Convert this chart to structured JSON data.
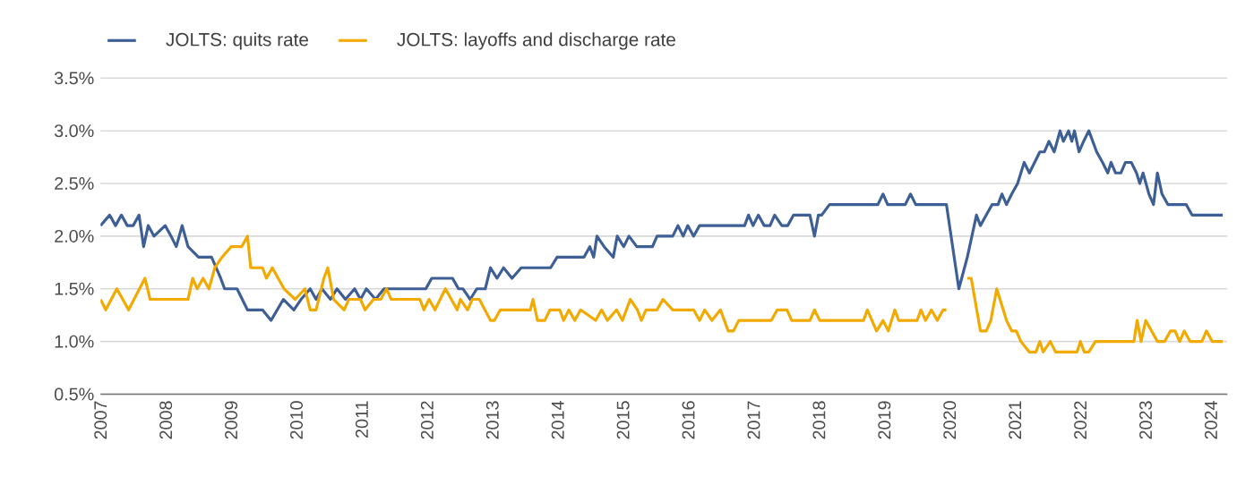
{
  "chart_data": {
    "type": "line",
    "legend": "top left",
    "grid": "y",
    "marker": "none",
    "line_style": "solid",
    "ylim": [
      0.5,
      3.5
    ],
    "yticks": [
      {
        "value": 0.5,
        "label": "0.5%"
      },
      {
        "value": 1.0,
        "label": "1.0%"
      },
      {
        "value": 1.5,
        "label": "1.5%"
      },
      {
        "value": 2.0,
        "label": "2.0%"
      },
      {
        "value": 2.5,
        "label": "2.5%"
      },
      {
        "value": 3.0,
        "label": "3.0%"
      },
      {
        "value": 3.5,
        "label": "3.5%"
      }
    ],
    "xlim": [
      2007,
      2024.25
    ],
    "xticks": [
      2007,
      2008,
      2009,
      2010,
      2011,
      2012,
      2013,
      2014,
      2015,
      2016,
      2017,
      2018,
      2019,
      2020,
      2021,
      2022,
      2023,
      2024
    ],
    "series": [
      {
        "name": "JOLTS: quits rate",
        "color": "#3d5f96",
        "x": [
          2007.0,
          2007.14,
          2007.23,
          2007.32,
          2007.41,
          2007.5,
          2007.59,
          2007.66,
          2007.73,
          2007.82,
          2007.99,
          2008.08,
          2008.16,
          2008.25,
          2008.34,
          2008.5,
          2008.7,
          2008.84,
          2008.9,
          2009.09,
          2009.25,
          2009.48,
          2009.61,
          2009.8,
          2009.96,
          2010.07,
          2010.21,
          2010.3,
          2010.39,
          2010.52,
          2010.62,
          2010.75,
          2010.89,
          2010.98,
          2011.07,
          2011.21,
          2011.34,
          2011.98,
          2012.07,
          2012.39,
          2012.48,
          2012.55,
          2012.66,
          2012.76,
          2012.89,
          2012.97,
          2013.07,
          2013.17,
          2013.3,
          2013.44,
          2013.89,
          2013.99,
          2014.4,
          2014.49,
          2014.55,
          2014.6,
          2014.71,
          2014.85,
          2014.91,
          2015.01,
          2015.09,
          2015.21,
          2015.45,
          2015.52,
          2015.76,
          2015.84,
          2015.92,
          2015.99,
          2016.08,
          2016.17,
          2016.86,
          2016.92,
          2016.99,
          2017.07,
          2017.16,
          2017.25,
          2017.32,
          2017.43,
          2017.52,
          2017.61,
          2017.86,
          2017.93,
          2017.99,
          2018.04,
          2018.16,
          2018.9,
          2018.98,
          2019.05,
          2019.32,
          2019.4,
          2019.48,
          2019.95,
          2020.14,
          2020.27,
          2020.41,
          2020.47,
          2020.56,
          2020.65,
          2020.74,
          2020.8,
          2020.87,
          2020.95,
          2021.04,
          2021.14,
          2021.22,
          2021.3,
          2021.38,
          2021.45,
          2021.52,
          2021.6,
          2021.69,
          2021.74,
          2021.82,
          2021.87,
          2021.91,
          2021.98,
          2022.05,
          2022.13,
          2022.25,
          2022.34,
          2022.42,
          2022.47,
          2022.54,
          2022.62,
          2022.69,
          2022.78,
          2022.86,
          2022.91,
          2022.96,
          2023.05,
          2023.12,
          2023.18,
          2023.25,
          2023.34,
          2023.62,
          2023.71,
          2024.18
        ],
        "values": [
          2.1,
          2.2,
          2.1,
          2.2,
          2.1,
          2.1,
          2.2,
          1.9,
          2.1,
          2.0,
          2.1,
          2.0,
          1.9,
          2.1,
          1.9,
          1.8,
          1.8,
          1.6,
          1.5,
          1.5,
          1.3,
          1.3,
          1.2,
          1.4,
          1.3,
          1.4,
          1.5,
          1.4,
          1.5,
          1.4,
          1.5,
          1.4,
          1.5,
          1.4,
          1.5,
          1.4,
          1.5,
          1.5,
          1.6,
          1.6,
          1.5,
          1.5,
          1.4,
          1.5,
          1.5,
          1.7,
          1.6,
          1.7,
          1.6,
          1.7,
          1.7,
          1.8,
          1.8,
          1.9,
          1.8,
          2.0,
          1.9,
          1.8,
          2.0,
          1.9,
          2.0,
          1.9,
          1.9,
          2.0,
          2.0,
          2.1,
          2.0,
          2.1,
          2.0,
          2.1,
          2.1,
          2.2,
          2.1,
          2.2,
          2.1,
          2.1,
          2.2,
          2.1,
          2.1,
          2.2,
          2.2,
          2.0,
          2.2,
          2.2,
          2.3,
          2.3,
          2.4,
          2.3,
          2.3,
          2.4,
          2.3,
          2.3,
          1.5,
          1.8,
          2.2,
          2.1,
          2.2,
          2.3,
          2.3,
          2.4,
          2.3,
          2.4,
          2.5,
          2.7,
          2.6,
          2.7,
          2.8,
          2.8,
          2.9,
          2.8,
          3.0,
          2.9,
          3.0,
          2.9,
          3.0,
          2.8,
          2.9,
          3.0,
          2.8,
          2.7,
          2.6,
          2.7,
          2.6,
          2.6,
          2.7,
          2.7,
          2.6,
          2.5,
          2.6,
          2.4,
          2.3,
          2.6,
          2.4,
          2.3,
          2.3,
          2.2,
          2.2
        ]
      },
      {
        "name": "JOLTS: layoffs and discharge rate",
        "color": "#f2a900",
        "x": [
          2007.0,
          2007.08,
          2007.25,
          2007.43,
          2007.68,
          2007.76,
          2008.34,
          2008.41,
          2008.48,
          2008.57,
          2008.66,
          2008.75,
          2008.86,
          2009.0,
          2009.16,
          2009.25,
          2009.3,
          2009.48,
          2009.54,
          2009.63,
          2009.81,
          2009.98,
          2010.13,
          2010.21,
          2010.3,
          2010.42,
          2010.48,
          2010.57,
          2010.73,
          2010.8,
          2010.98,
          2011.05,
          2011.18,
          2011.29,
          2011.38,
          2011.45,
          2011.89,
          2011.95,
          2012.03,
          2012.12,
          2012.28,
          2012.46,
          2012.51,
          2012.62,
          2012.69,
          2012.8,
          2012.97,
          2013.03,
          2013.12,
          2013.58,
          2013.62,
          2013.69,
          2013.8,
          2013.88,
          2014.03,
          2014.09,
          2014.17,
          2014.26,
          2014.35,
          2014.58,
          2014.67,
          2014.76,
          2014.9,
          2014.99,
          2015.11,
          2015.22,
          2015.28,
          2015.35,
          2015.52,
          2015.61,
          2015.76,
          2016.08,
          2016.17,
          2016.25,
          2016.36,
          2016.49,
          2016.61,
          2016.69,
          2016.77,
          2017.27,
          2017.36,
          2017.51,
          2017.58,
          2017.86,
          2017.93,
          2018.01,
          2018.68,
          2018.74,
          2018.88,
          2018.98,
          2019.06,
          2019.16,
          2019.22,
          2019.5,
          2019.56,
          2019.63,
          2019.72,
          2019.81,
          2019.9,
          2019.95,
          2020.04,
          2020.12,
          2020.27,
          2020.33,
          2020.47,
          2020.56,
          2020.63,
          2020.72,
          2020.87,
          2020.95,
          2021.02,
          2021.09,
          2021.22,
          2021.32,
          2021.38,
          2021.43,
          2021.54,
          2021.62,
          2021.95,
          2022.0,
          2022.06,
          2022.13,
          2022.23,
          2022.82,
          2022.87,
          2022.93,
          2023.0,
          2023.09,
          2023.18,
          2023.29,
          2023.38,
          2023.45,
          2023.52,
          2023.59,
          2023.68,
          2023.86,
          2023.93,
          2024.02,
          2024.18
        ],
        "values": [
          1.4,
          1.3,
          1.5,
          1.3,
          1.6,
          1.4,
          1.4,
          1.6,
          1.5,
          1.6,
          1.5,
          1.7,
          1.8,
          1.9,
          1.9,
          2.0,
          1.7,
          1.7,
          1.6,
          1.7,
          1.5,
          1.4,
          1.5,
          1.3,
          1.3,
          1.6,
          1.7,
          1.4,
          1.3,
          1.4,
          1.4,
          1.3,
          1.4,
          1.4,
          1.5,
          1.4,
          1.4,
          1.3,
          1.4,
          1.3,
          1.5,
          1.3,
          1.4,
          1.3,
          1.4,
          1.4,
          1.2,
          1.2,
          1.3,
          1.3,
          1.4,
          1.2,
          1.2,
          1.3,
          1.3,
          1.2,
          1.3,
          1.2,
          1.3,
          1.2,
          1.3,
          1.2,
          1.3,
          1.2,
          1.4,
          1.3,
          1.2,
          1.3,
          1.3,
          1.4,
          1.3,
          1.3,
          1.2,
          1.3,
          1.2,
          1.3,
          1.1,
          1.1,
          1.2,
          1.2,
          1.3,
          1.3,
          1.2,
          1.2,
          1.3,
          1.2,
          1.2,
          1.3,
          1.1,
          1.2,
          1.1,
          1.3,
          1.2,
          1.2,
          1.3,
          1.2,
          1.3,
          1.2,
          1.3,
          1.3,
          null,
          null,
          1.6,
          1.6,
          1.1,
          1.1,
          1.2,
          1.5,
          1.2,
          1.1,
          1.1,
          1.0,
          0.9,
          0.9,
          1.0,
          0.9,
          1.0,
          0.9,
          0.9,
          1.0,
          0.9,
          0.9,
          1.0,
          1.0,
          1.2,
          1.0,
          1.2,
          1.1,
          1.0,
          1.0,
          1.1,
          1.1,
          1.0,
          1.1,
          1.0,
          1.0,
          1.1,
          1.0,
          1.0
        ]
      }
    ]
  }
}
